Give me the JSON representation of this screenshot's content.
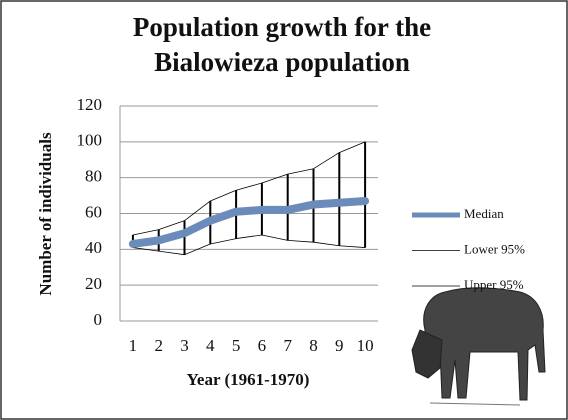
{
  "chart_data": {
    "type": "line",
    "title": [
      "Population growth for the",
      "Bialowieza population"
    ],
    "x_label": "Year (1961-1970)",
    "y_label": "Number of individuals",
    "categories": [
      "1",
      "2",
      "3",
      "4",
      "5",
      "6",
      "7",
      "8",
      "9",
      "10"
    ],
    "series": [
      {
        "name": "Median",
        "color": "#6b8cba",
        "values": [
          43,
          45,
          49,
          56,
          61,
          62,
          62,
          65,
          66,
          67
        ]
      },
      {
        "name": "Lower 95%",
        "color": "#000000",
        "values": [
          41,
          39,
          37,
          43,
          46,
          48,
          45,
          44,
          42,
          41
        ]
      },
      {
        "name": "Upper 95%",
        "color": "#000000",
        "values": [
          48,
          51,
          56,
          67,
          73,
          77,
          82,
          85,
          94,
          100
        ]
      }
    ],
    "ylim": [
      0,
      120
    ],
    "yticks": [
      0,
      20,
      40,
      60,
      80,
      100,
      120
    ],
    "grid": true,
    "legend": "right"
  }
}
